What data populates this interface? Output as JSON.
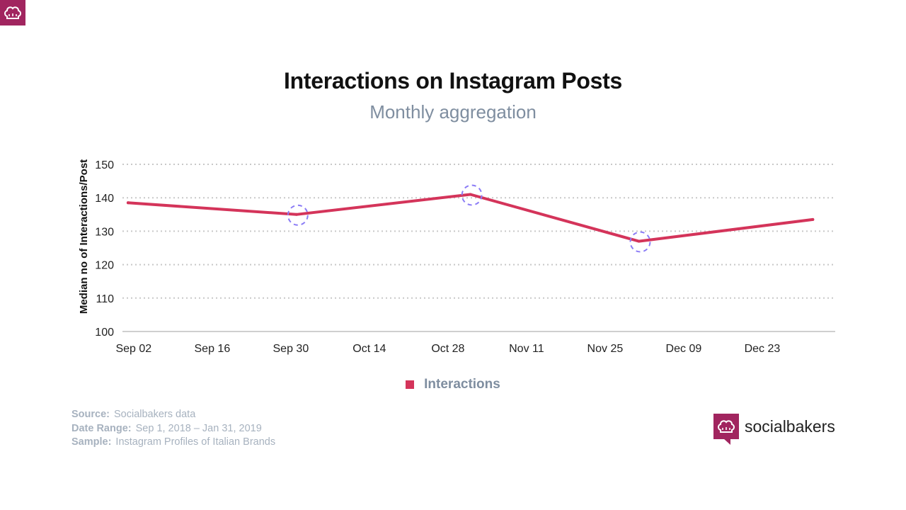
{
  "header": {
    "title": "Interactions on Instagram Posts",
    "subtitle": "Monthly aggregation"
  },
  "colors": {
    "series": "#d4345a",
    "brand": "#a1255f",
    "marker_ring": "#8b7cf6",
    "grid": "#c8c8c8"
  },
  "chart_data": {
    "type": "line",
    "title": "Interactions on Instagram Posts",
    "subtitle": "Monthly aggregation",
    "xlabel": "",
    "ylabel": "Median no of Interactions/Post",
    "xlim": [
      "2018-08-31",
      "2019-01-05"
    ],
    "ylim": [
      100,
      150
    ],
    "x_ticks": [
      {
        "date": "2018-09-02",
        "label": "Sep 02"
      },
      {
        "date": "2018-09-16",
        "label": "Sep 16"
      },
      {
        "date": "2018-09-30",
        "label": "Sep 30"
      },
      {
        "date": "2018-10-14",
        "label": "Oct 14"
      },
      {
        "date": "2018-10-28",
        "label": "Oct 28"
      },
      {
        "date": "2018-11-11",
        "label": "Nov 11"
      },
      {
        "date": "2018-11-25",
        "label": "Nov 25"
      },
      {
        "date": "2018-12-09",
        "label": "Dec 09"
      },
      {
        "date": "2018-12-23",
        "label": "Dec 23"
      }
    ],
    "y_ticks": [
      100,
      110,
      120,
      130,
      140,
      150
    ],
    "grid": true,
    "legend_position": "bottom-center",
    "series": [
      {
        "name": "Interactions",
        "points": [
          {
            "x": "2018-09-01",
            "y": 138.5
          },
          {
            "x": "2018-10-01",
            "y": 135
          },
          {
            "x": "2018-11-01",
            "y": 141
          },
          {
            "x": "2018-12-01",
            "y": 127
          },
          {
            "x": "2019-01-01",
            "y": 133.5
          }
        ]
      }
    ],
    "highlighted_points": [
      "2018-10-01",
      "2018-11-01",
      "2018-12-01"
    ]
  },
  "footer": {
    "source_label": "Source:",
    "source_value": "Socialbakers data",
    "range_label": "Date Range:",
    "range_value": "Sep 1, 2018  – Jan 31, 2019",
    "sample_label": "Sample:",
    "sample_value": "Instagram Profiles of Italian Brands"
  },
  "brand": {
    "name": "socialbakers",
    "icon": "chef-hat-icon"
  }
}
